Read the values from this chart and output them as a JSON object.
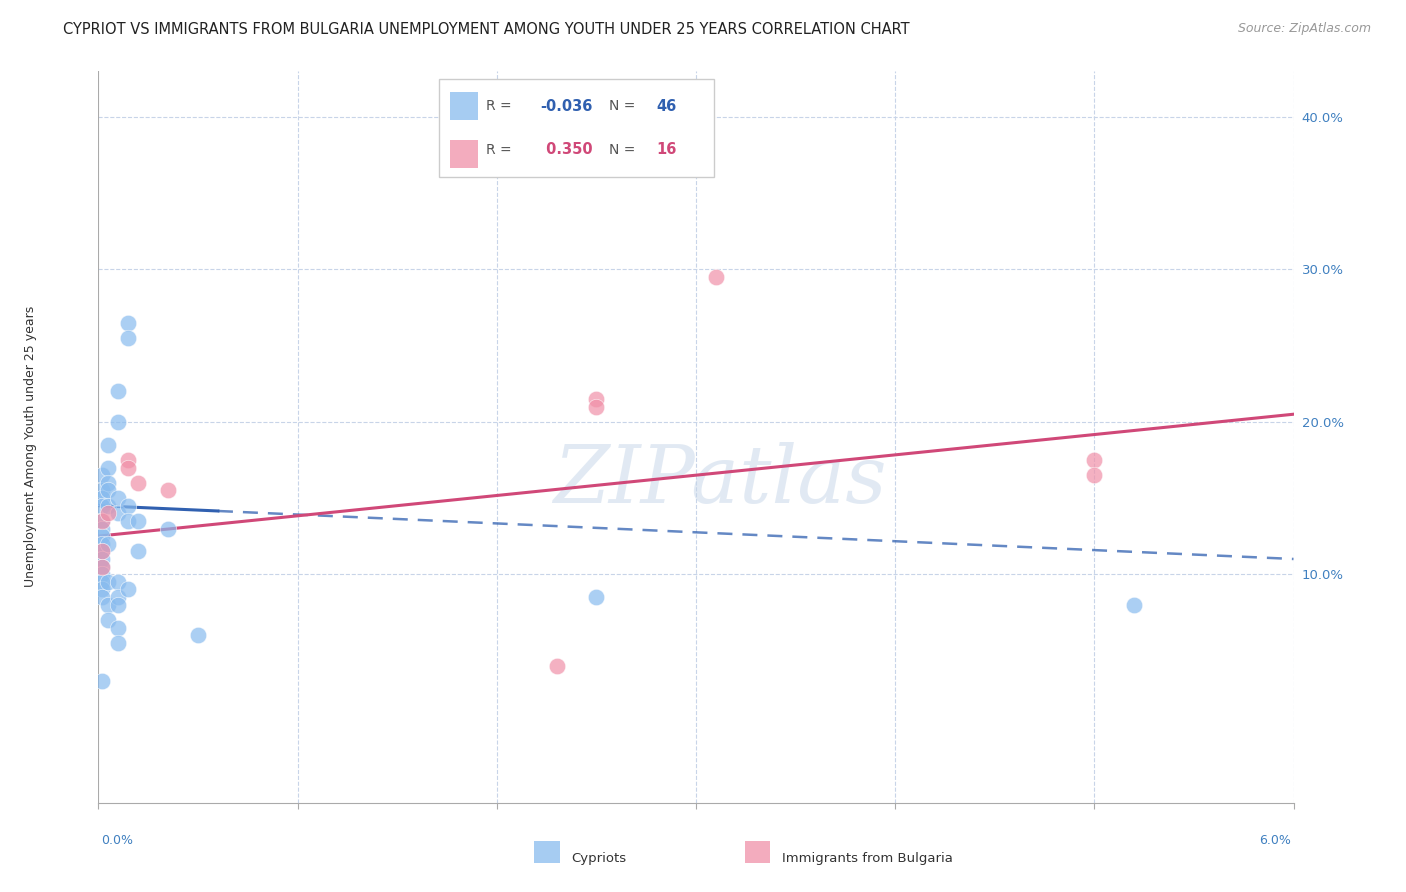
{
  "title": "CYPRIOT VS IMMIGRANTS FROM BULGARIA UNEMPLOYMENT AMONG YOUTH UNDER 25 YEARS CORRELATION CHART",
  "source": "Source: ZipAtlas.com",
  "ylabel": "Unemployment Among Youth under 25 years",
  "ytick_labels": [
    "10.0%",
    "20.0%",
    "30.0%",
    "40.0%"
  ],
  "ytick_values": [
    10.0,
    20.0,
    30.0,
    40.0
  ],
  "xlim": [
    0.0,
    6.0
  ],
  "ylim": [
    -5.0,
    43.0
  ],
  "cypriot_color": "#88bbee",
  "bulgaria_color": "#f090a8",
  "cypriot_line_color": "#3060b0",
  "bulgaria_line_color": "#d04878",
  "watermark_text": "ZIPatlas",
  "background_color": "#ffffff",
  "grid_color": "#c8d4e8",
  "cypriot_points": [
    [
      0.02,
      16.5
    ],
    [
      0.02,
      15.5
    ],
    [
      0.02,
      15.0
    ],
    [
      0.02,
      14.5
    ],
    [
      0.02,
      13.5
    ],
    [
      0.02,
      13.0
    ],
    [
      0.02,
      12.5
    ],
    [
      0.02,
      12.0
    ],
    [
      0.02,
      11.5
    ],
    [
      0.02,
      11.0
    ],
    [
      0.02,
      10.5
    ],
    [
      0.02,
      10.0
    ],
    [
      0.02,
      9.5
    ],
    [
      0.02,
      9.0
    ],
    [
      0.02,
      8.5
    ],
    [
      0.05,
      18.5
    ],
    [
      0.05,
      17.0
    ],
    [
      0.05,
      16.0
    ],
    [
      0.05,
      15.5
    ],
    [
      0.05,
      14.5
    ],
    [
      0.05,
      12.0
    ],
    [
      0.05,
      9.5
    ],
    [
      0.05,
      8.0
    ],
    [
      0.05,
      7.0
    ],
    [
      0.1,
      22.0
    ],
    [
      0.1,
      20.0
    ],
    [
      0.1,
      15.0
    ],
    [
      0.1,
      14.0
    ],
    [
      0.1,
      9.5
    ],
    [
      0.1,
      8.5
    ],
    [
      0.1,
      8.0
    ],
    [
      0.1,
      6.5
    ],
    [
      0.1,
      5.5
    ],
    [
      0.15,
      26.5
    ],
    [
      0.15,
      25.5
    ],
    [
      0.15,
      14.5
    ],
    [
      0.15,
      13.5
    ],
    [
      0.15,
      9.0
    ],
    [
      0.2,
      13.5
    ],
    [
      0.2,
      11.5
    ],
    [
      0.35,
      13.0
    ],
    [
      0.5,
      6.0
    ],
    [
      2.5,
      8.5
    ],
    [
      5.2,
      8.0
    ],
    [
      0.02,
      3.0
    ]
  ],
  "bulgaria_points": [
    [
      0.02,
      13.5
    ],
    [
      0.02,
      11.5
    ],
    [
      0.02,
      10.5
    ],
    [
      0.05,
      14.0
    ],
    [
      0.15,
      17.5
    ],
    [
      0.15,
      17.0
    ],
    [
      0.2,
      16.0
    ],
    [
      0.35,
      15.5
    ],
    [
      2.5,
      21.5
    ],
    [
      2.5,
      21.0
    ],
    [
      3.1,
      29.5
    ],
    [
      5.0,
      17.5
    ],
    [
      5.0,
      16.5
    ],
    [
      2.3,
      4.0
    ]
  ],
  "cypriot_trend_x": [
    0.0,
    6.0
  ],
  "cypriot_trend_y": [
    14.5,
    11.0
  ],
  "cypriot_solid_end": 0.6,
  "bulgaria_trend_x": [
    0.0,
    6.0
  ],
  "bulgaria_trend_y": [
    12.5,
    20.5
  ]
}
